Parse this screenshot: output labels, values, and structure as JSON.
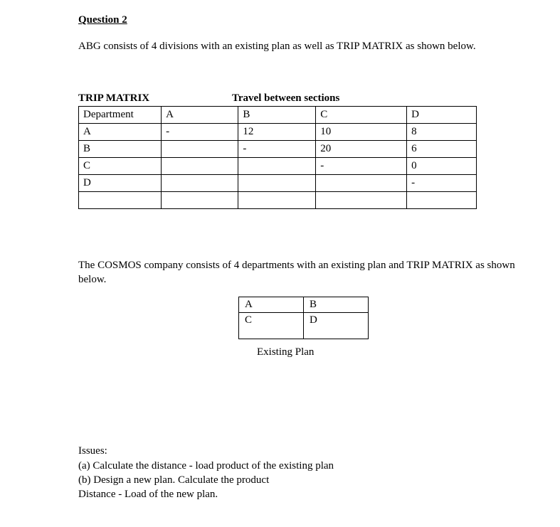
{
  "question_title": "Question 2",
  "intro": "ABG consists of 4 divisions with an existing plan as well as TRIP MATRIX as shown below.",
  "matrix": {
    "label_left": "TRIP MATRIX",
    "label_right": "Travel between sections",
    "columns": [
      "Department",
      "A",
      "B",
      "C",
      "D"
    ],
    "rows": [
      [
        "A",
        "-",
        "12",
        "10",
        "8"
      ],
      [
        "B",
        "",
        "-",
        "20",
        "6"
      ],
      [
        "C",
        "",
        "",
        "-",
        "0"
      ],
      [
        "D",
        "",
        "",
        "",
        "-"
      ],
      [
        "",
        "",
        "",
        "",
        ""
      ]
    ],
    "border_color": "#000000",
    "background_color": "#ffffff",
    "font_size": 15
  },
  "cosmos_text": "The COSMOS company consists of 4 departments with an existing plan and TRIP MATRIX as shown below.",
  "plan": {
    "cells": [
      [
        "A",
        "B"
      ],
      [
        "C",
        "D"
      ]
    ],
    "caption": "Existing Plan",
    "border_color": "#000000"
  },
  "issues": {
    "heading": "Issues:",
    "items": [
      "(a) Calculate the distance - load product of the existing plan",
      "(b) Design a new plan. Calculate the product",
      "Distance - Load of the new plan."
    ]
  }
}
